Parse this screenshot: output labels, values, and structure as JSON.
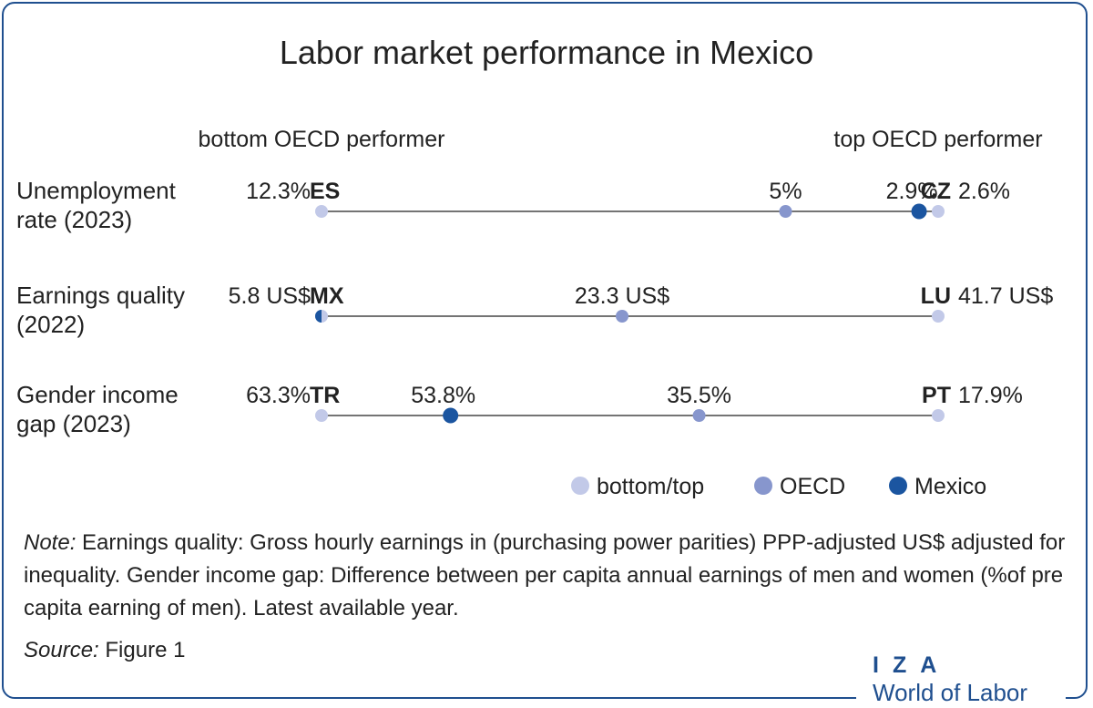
{
  "chart_data": {
    "type": "dot-range",
    "title": "Labor market performance in Mexico",
    "left_header": "bottom OECD performer",
    "right_header": "top OECD performer",
    "rows": [
      {
        "label_lines": [
          "Unemployment",
          "rate (2023)"
        ],
        "bottom": {
          "value": 12.3,
          "text": "12.3%",
          "code": "ES"
        },
        "top": {
          "value": 2.6,
          "text": "2.6%",
          "code": "CZ"
        },
        "oecd": {
          "value": 5,
          "text": "5%"
        },
        "mexico": {
          "value": 2.9,
          "text": "2.9%"
        }
      },
      {
        "label_lines": [
          "Earnings quality",
          "(2022)"
        ],
        "bottom": {
          "value": 5.8,
          "text": "5.8 US$",
          "code": "MX"
        },
        "top": {
          "value": 41.7,
          "text": "41.7 US$",
          "code": "LU"
        },
        "oecd": {
          "value": 23.3,
          "text": "23.3 US$"
        },
        "mexico": {
          "value": 5.8,
          "text": ""
        }
      },
      {
        "label_lines": [
          "Gender income",
          "gap (2023)"
        ],
        "bottom": {
          "value": 63.3,
          "text": "63.3%",
          "code": "TR"
        },
        "top": {
          "value": 17.9,
          "text": "17.9%",
          "code": "PT"
        },
        "oecd": {
          "value": 35.5,
          "text": "35.5%"
        },
        "mexico": {
          "value": 53.8,
          "text": "53.8%"
        }
      }
    ],
    "legend": [
      {
        "key": "bottom_top",
        "label": "bottom/top",
        "color": "#c2c9e8"
      },
      {
        "key": "oecd",
        "label": "OECD",
        "color": "#8796cd"
      },
      {
        "key": "mexico",
        "label": "Mexico",
        "color": "#1b55a0"
      }
    ],
    "colors": {
      "line": "#222222"
    }
  },
  "note": {
    "label": "Note:",
    "text": "Earnings quality: Gross hourly earnings in (purchasing power parities) PPP-adjusted US$ adjusted for inequality. Gender income gap: Difference between per capita annual earnings of men and women (%of pre capita earning of men). Latest available year."
  },
  "source": {
    "label": "Source:",
    "text": "Figure 1"
  },
  "logo": {
    "line1": "IZA",
    "line2": "World of Labor"
  },
  "colors": {
    "frame": "#1f4f8f",
    "brand": "#1f4f8f"
  }
}
